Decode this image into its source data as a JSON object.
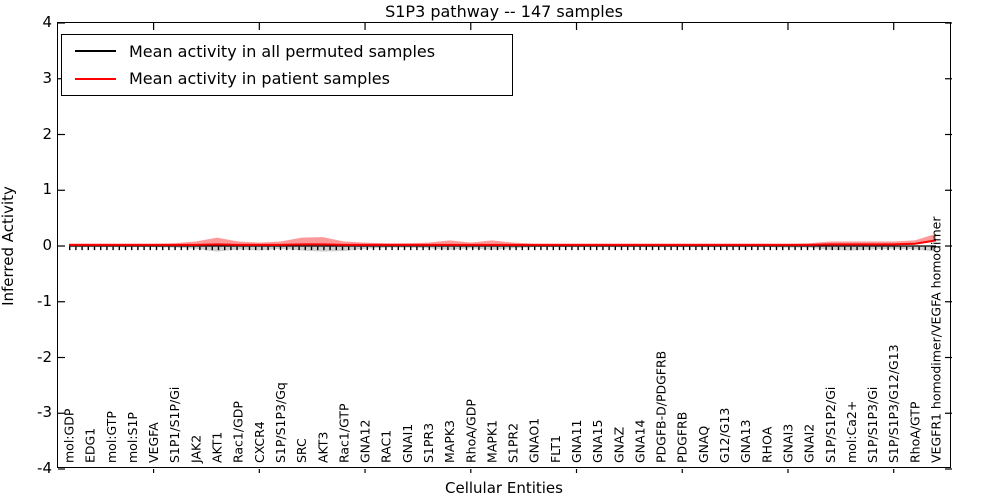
{
  "title": "S1P3 pathway -- 147 samples",
  "legend": {
    "items": [
      {
        "label": "Mean activity in all permuted samples",
        "color": "#000000"
      },
      {
        "label": "Mean activity in patient samples",
        "color": "#ff0000"
      }
    ]
  },
  "axes": {
    "ylabel": "Inferred Activity",
    "xlabel": "Cellular Entities",
    "yticks": [
      "4",
      "3",
      "2",
      "1",
      "0",
      "-1",
      "-2",
      "-3",
      "-4"
    ]
  },
  "colors": {
    "permuted_line": "#000000",
    "patient_line": "#ff0000",
    "band_upper": "#ff3333",
    "band_lower": "#aaaaaa",
    "frame": "#000000"
  },
  "chart_data": {
    "type": "line",
    "title": "S1P3 pathway -- 147 samples",
    "xlabel": "Cellular Entities",
    "ylabel": "Inferred Activity",
    "ylim": [
      -4,
      4
    ],
    "grid": false,
    "legend_position": "upper left",
    "categories": [
      "mol:GDP",
      "EDG1",
      "mol:GTP",
      "mol:S1P",
      "VEGFA",
      "S1P1/S1P/Gi",
      "JAK2",
      "AKT1",
      "Rac1/GDP",
      "CXCR4",
      "S1P/S1P3/Gq",
      "SRC",
      "AKT3",
      "Rac1/GTP",
      "GNA12",
      "RAC1",
      "GNAI1",
      "S1PR3",
      "MAPK3",
      "RhoA/GDP",
      "MAPK1",
      "S1PR2",
      "GNAO1",
      "FLT1",
      "GNA11",
      "GNA15",
      "GNAZ",
      "GNA14",
      "PDGFB-D/PDGFRB",
      "PDGFRB",
      "GNAQ",
      "G12/G13",
      "GNA13",
      "RHOA",
      "GNAI3",
      "GNAI2",
      "S1P/S1P2/Gi",
      "mol:Ca2+",
      "S1P/S1P3/Gi",
      "S1P/S1P3/G12/G13",
      "RhoA/GTP",
      "VEGFR1 homodimer/VEGFA homodimer"
    ],
    "series": [
      {
        "name": "Mean activity in all permuted samples",
        "color": "#000000",
        "values": [
          0,
          0,
          0,
          0,
          0,
          0,
          0,
          0,
          0,
          0,
          0,
          0,
          0,
          0,
          0,
          0,
          0,
          0,
          0,
          0,
          0,
          0,
          0,
          0,
          0,
          0,
          0,
          0,
          0,
          0,
          0,
          0,
          0,
          0,
          0,
          0,
          0,
          0,
          0,
          0,
          0,
          0
        ]
      },
      {
        "name": "Mean activity in patient samples",
        "color": "#ff0000",
        "values": [
          0.02,
          0.02,
          0.02,
          0.02,
          0.02,
          0.02,
          0.02,
          0.03,
          0.02,
          0.02,
          0.02,
          0.03,
          0.03,
          0.02,
          0.02,
          0.02,
          0.02,
          0.02,
          0.02,
          0.02,
          0.02,
          0.02,
          0.02,
          0.02,
          0.02,
          0.02,
          0.02,
          0.02,
          0.02,
          0.02,
          0.02,
          0.02,
          0.02,
          0.02,
          0.02,
          0.02,
          0.03,
          0.03,
          0.03,
          0.03,
          0.04,
          0.1
        ]
      }
    ],
    "band_upper_halfwidth": [
      0.02,
      0.02,
      0.02,
      0.02,
      0.02,
      0.03,
      0.06,
      0.12,
      0.06,
      0.04,
      0.06,
      0.12,
      0.13,
      0.06,
      0.04,
      0.03,
      0.03,
      0.04,
      0.08,
      0.04,
      0.08,
      0.04,
      0.02,
      0.02,
      0.02,
      0.02,
      0.02,
      0.02,
      0.02,
      0.02,
      0.02,
      0.02,
      0.02,
      0.02,
      0.02,
      0.03,
      0.05,
      0.05,
      0.05,
      0.05,
      0.06,
      0.12
    ],
    "band_lower_halfwidth": [
      0.02,
      0.02,
      0.02,
      0.02,
      0.02,
      0.03,
      0.05,
      0.1,
      0.06,
      0.08,
      0.05,
      0.08,
      0.1,
      0.09,
      0.05,
      0.03,
      0.03,
      0.04,
      0.07,
      0.04,
      0.07,
      0.04,
      0.02,
      0.02,
      0.02,
      0.02,
      0.02,
      0.02,
      0.02,
      0.02,
      0.02,
      0.02,
      0.02,
      0.02,
      0.03,
      0.03,
      0.07,
      0.08,
      0.06,
      0.05,
      0.06,
      0.1
    ]
  }
}
